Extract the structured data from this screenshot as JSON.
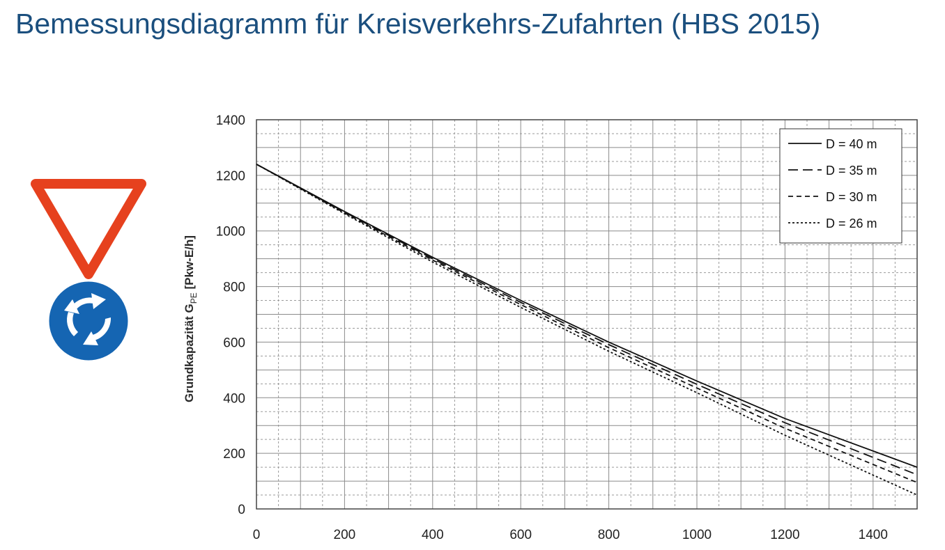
{
  "title": "Bemessungsdiagramm für Kreisverkehrs-Zufahrten (HBS 2015)",
  "signs": {
    "yield_icon": "yield-sign-icon",
    "roundabout_icon": "roundabout-sign-icon",
    "colors": {
      "yield_red": "#e6411e",
      "roundabout_blue": "#1565b2"
    }
  },
  "chart_data": {
    "type": "line",
    "title": "",
    "xlabel": "",
    "ylabel_main": "Grundkapazität G",
    "ylabel_sub": "PE",
    "ylabel_unit": " [Pkw-E/h]",
    "xlim": [
      0,
      1500
    ],
    "ylim": [
      0,
      1400
    ],
    "x_ticks": [
      "0",
      "200",
      "400",
      "600",
      "800",
      "1000",
      "1200",
      "1400"
    ],
    "y_ticks": [
      "0",
      "200",
      "400",
      "600",
      "800",
      "1000",
      "1200",
      "1400"
    ],
    "grid": true,
    "legend_position": "top-right",
    "x": [
      0,
      200,
      400,
      600,
      800,
      1000,
      1200,
      1500
    ],
    "series": [
      {
        "name": "D = 40 m",
        "dash": "solid",
        "values": [
          1240,
          1070,
          905,
          750,
          600,
          460,
          325,
          150
        ]
      },
      {
        "name": "D = 35 m",
        "dash": "long-dash",
        "values": [
          1240,
          1068,
          900,
          743,
          591,
          448,
          310,
          123
        ]
      },
      {
        "name": "D = 30 m",
        "dash": "short-dash",
        "values": [
          1240,
          1065,
          895,
          735,
          580,
          435,
          290,
          95
        ]
      },
      {
        "name": "D = 26 m",
        "dash": "dotted",
        "values": [
          1240,
          1062,
          888,
          725,
          567,
          418,
          265,
          50
        ]
      }
    ]
  }
}
